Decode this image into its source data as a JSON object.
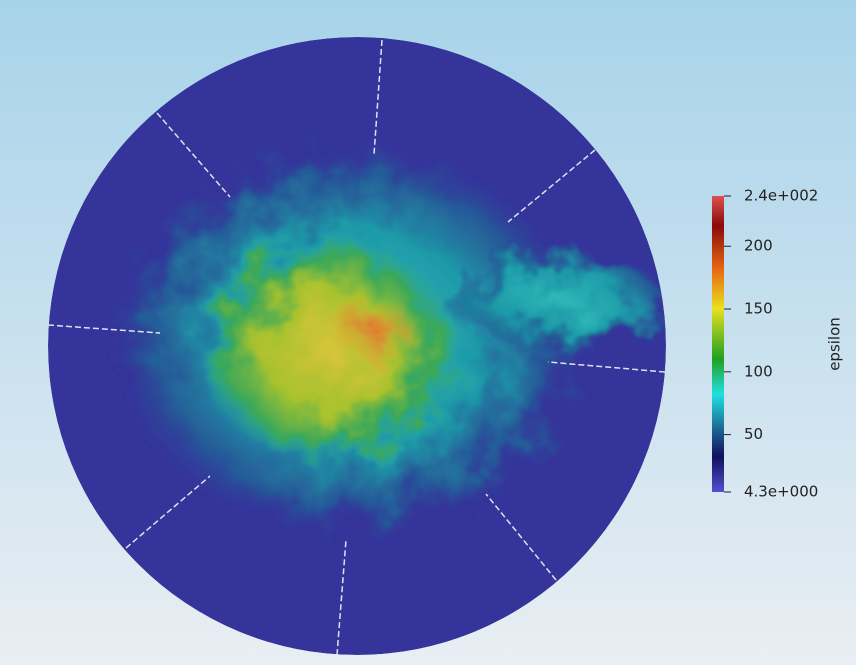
{
  "colorbar": {
    "title": "epsilon",
    "range": [
      4.3,
      240
    ],
    "ticks": [
      {
        "value": 240,
        "label": "2.4e+002"
      },
      200,
      150,
      100,
      50,
      {
        "value": 4.3,
        "label": "4.3e+000"
      }
    ]
  }
}
